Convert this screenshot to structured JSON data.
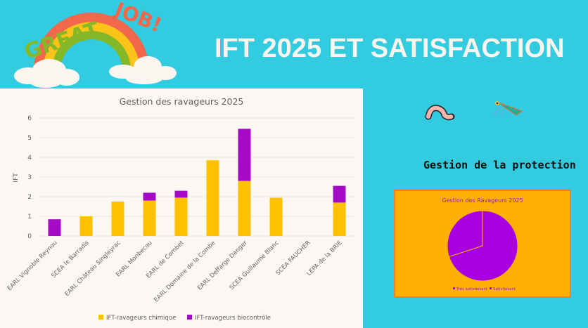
{
  "header": {
    "title": "IFT 2025 ET SATISFACTION",
    "logo_text": "GREAT JOB!"
  },
  "right": {
    "section_title": "Gestion de la protection",
    "icons": [
      "worm-icon",
      "leafhopper-insect-icon"
    ]
  },
  "colors": {
    "background": "#33CBE0",
    "chimique": "#FFC000",
    "biocontrole": "#A50AC6",
    "pie_bg": "#FFB000"
  },
  "chart_data": [
    {
      "type": "bar",
      "stacked": true,
      "title": "Gestion des ravageurs 2025",
      "xlabel": "",
      "ylabel": "IFT",
      "ylim": [
        0,
        6
      ],
      "yticks": [
        "0",
        "1",
        "2",
        "3",
        "4",
        "5",
        "6"
      ],
      "grid": true,
      "legend_position": "bottom",
      "categories": [
        "EARL Vignoble Reynou",
        "SCEA le Barradis",
        "EARL Château Singleyrac",
        "EARL Monbecou",
        "EARL de Combet",
        "EARL Domaine de la Combe",
        "EARL Deffarge Danger",
        "SCEA Guillaume Blanc",
        "SCEA FAUCHER",
        "LEPA de la BRIE"
      ],
      "series": [
        {
          "name": "IFT-ravageurs chimique",
          "color": "#FFC000",
          "values": [
            0,
            1.0,
            1.75,
            1.8,
            1.95,
            3.85,
            2.8,
            1.95,
            0,
            1.7
          ]
        },
        {
          "name": "IFT-ravageurs biocontrôle",
          "color": "#A50AC6",
          "values": [
            0.85,
            0,
            0,
            0.4,
            0.35,
            0,
            2.65,
            0,
            0,
            0.85
          ]
        }
      ]
    },
    {
      "type": "pie",
      "title": "Gestion des Ravageurs 2025",
      "legend_position": "bottom",
      "labels": [
        "Très satisfaisant",
        "Satisfaisant"
      ],
      "values": [
        70,
        30
      ],
      "colors": [
        "#A800E0",
        "#A800E0"
      ]
    }
  ]
}
